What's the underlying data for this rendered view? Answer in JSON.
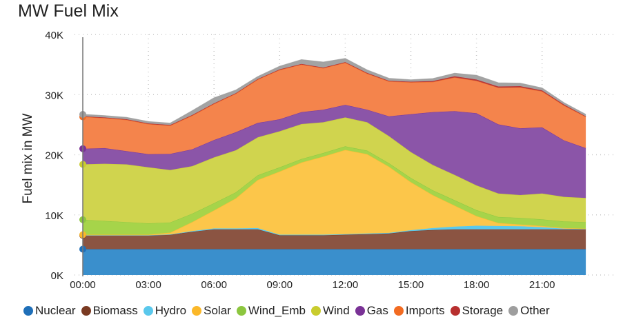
{
  "chart_data": {
    "type": "area",
    "stacked": true,
    "title": "MW Fuel Mix",
    "xlabel": "",
    "ylabel": "Fuel mix in MW",
    "ylim": [
      0,
      40000
    ],
    "yticks": [
      0,
      10000,
      20000,
      30000,
      40000
    ],
    "ytick_labels": [
      "0K",
      "10K",
      "20K",
      "30K",
      "40K"
    ],
    "xlim_hours": [
      0,
      24
    ],
    "xticks_hours": [
      0,
      3,
      6,
      9,
      12,
      15,
      18,
      21
    ],
    "xtick_labels": [
      "00:00",
      "03:00",
      "06:00",
      "09:00",
      "12:00",
      "15:00",
      "18:00",
      "21:00"
    ],
    "grid": true,
    "legend_position": "bottom",
    "x_hours": [
      0,
      1,
      2,
      3,
      4,
      5,
      6,
      7,
      8,
      9,
      10,
      11,
      12,
      13,
      14,
      15,
      16,
      17,
      18,
      19,
      20,
      21,
      22,
      23
    ],
    "series": [
      {
        "name": "Nuclear",
        "color": "#3a8fcc",
        "legend_color": "#1f6fb8",
        "values": [
          4300,
          4300,
          4300,
          4300,
          4300,
          4300,
          4300,
          4300,
          4300,
          4300,
          4300,
          4300,
          4300,
          4300,
          4300,
          4300,
          4300,
          4300,
          4300,
          4300,
          4300,
          4300,
          4300,
          4300
        ]
      },
      {
        "name": "Biomass",
        "color": "#8b5442",
        "legend_color": "#7a3a22",
        "values": [
          2300,
          2300,
          2300,
          2300,
          2400,
          2900,
          3300,
          3300,
          3300,
          2300,
          2300,
          2300,
          2400,
          2500,
          2600,
          3000,
          3200,
          3300,
          3300,
          3300,
          3300,
          3300,
          3300,
          3300
        ]
      },
      {
        "name": "Hydro",
        "color": "#5ac8ec",
        "legend_color": "#5ac8ec",
        "values": [
          0,
          0,
          0,
          0,
          50,
          100,
          150,
          150,
          200,
          100,
          100,
          100,
          100,
          100,
          100,
          150,
          300,
          450,
          600,
          550,
          500,
          350,
          100,
          50
        ]
      },
      {
        "name": "Solar",
        "color": "#fcc64a",
        "legend_color": "#fbb829",
        "values": [
          100,
          100,
          100,
          100,
          300,
          1500,
          3000,
          5000,
          8000,
          10500,
          12000,
          13000,
          14000,
          13200,
          11000,
          8000,
          5500,
          3500,
          1600,
          500,
          300,
          200,
          100,
          50
        ]
      },
      {
        "name": "Wind_Emb",
        "color": "#a6d44a",
        "legend_color": "#8cc63f",
        "values": [
          2500,
          2300,
          2100,
          1900,
          1700,
          1400,
          1200,
          1000,
          800,
          700,
          600,
          600,
          600,
          600,
          600,
          700,
          800,
          900,
          1000,
          1000,
          1100,
          1100,
          1100,
          1100
        ]
      },
      {
        "name": "Wind",
        "color": "#d0d44e",
        "legend_color": "#c9cc2e",
        "values": [
          9200,
          9500,
          9600,
          9300,
          8700,
          7900,
          7600,
          7000,
          6300,
          6000,
          5800,
          5100,
          4800,
          4700,
          4500,
          4300,
          4200,
          4200,
          4100,
          3900,
          3800,
          4300,
          4100,
          4000
        ]
      },
      {
        "name": "Gas",
        "color": "#8b55a8",
        "legend_color": "#7a3296",
        "values": [
          2600,
          2600,
          2200,
          2200,
          2700,
          2800,
          2900,
          3000,
          2400,
          2000,
          2000,
          2100,
          2100,
          2100,
          3300,
          6300,
          8800,
          10600,
          12000,
          11500,
          11100,
          11000,
          9400,
          8300
        ]
      },
      {
        "name": "Imports",
        "color": "#f4844c",
        "legend_color": "#f26b21",
        "values": [
          5300,
          5000,
          5200,
          5000,
          4700,
          5600,
          6000,
          6400,
          7200,
          8200,
          7900,
          6900,
          7000,
          6000,
          5800,
          5300,
          5000,
          5600,
          5400,
          6100,
          6800,
          6000,
          5800,
          5200
        ]
      },
      {
        "name": "Storage",
        "color": "#b8393a",
        "legend_color": "#b8302f",
        "values": [
          100,
          100,
          100,
          100,
          100,
          100,
          100,
          100,
          100,
          100,
          100,
          100,
          100,
          100,
          100,
          100,
          150,
          200,
          200,
          200,
          200,
          150,
          150,
          100
        ]
      },
      {
        "name": "Other",
        "color": "#a3a3a3",
        "legend_color": "#9e9e9e",
        "values": [
          300,
          300,
          300,
          300,
          300,
          700,
          900,
          500,
          400,
          500,
          700,
          900,
          600,
          500,
          400,
          300,
          400,
          500,
          700,
          600,
          500,
          400,
          300,
          300
        ]
      }
    ]
  }
}
